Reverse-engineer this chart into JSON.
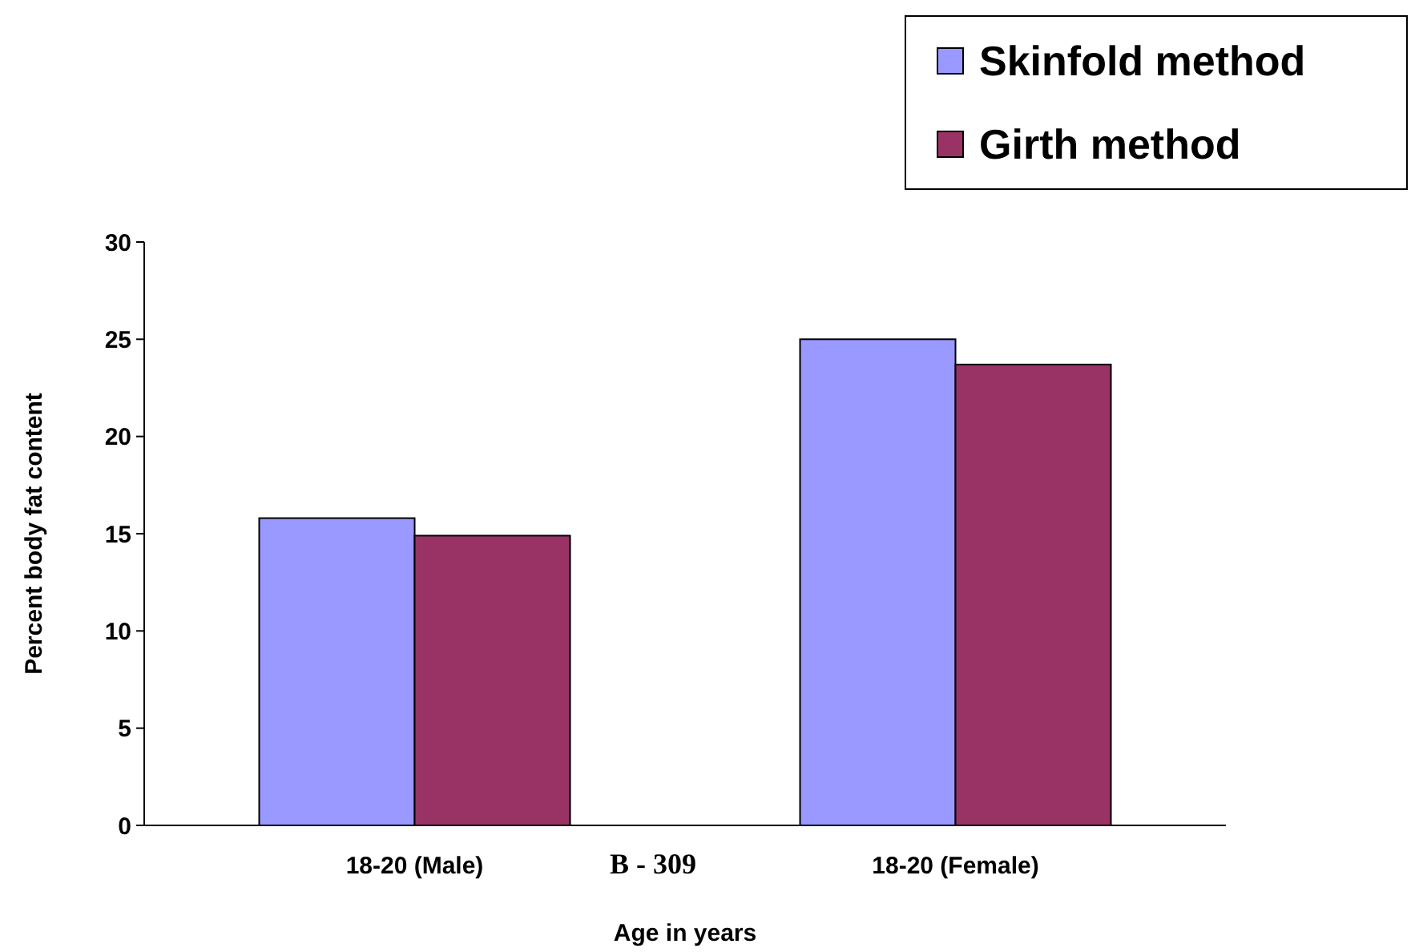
{
  "chart_data": {
    "type": "bar",
    "xlabel": "Age in years",
    "ylabel": "Percent body fat content",
    "categories": [
      "18-20 (Male)",
      "18-20 (Female)"
    ],
    "series": [
      {
        "name": "Skinfold method",
        "color": "#9999ff",
        "values": [
          15.8,
          25.0
        ]
      },
      {
        "name": "Girth method",
        "color": "#993366",
        "values": [
          14.9,
          23.7
        ]
      }
    ],
    "ylim": [
      0,
      30
    ],
    "yticks": [
      0,
      5,
      10,
      15,
      20,
      25,
      30
    ],
    "grid": false,
    "legend": "top right",
    "annotations": [
      "B - 309"
    ]
  }
}
